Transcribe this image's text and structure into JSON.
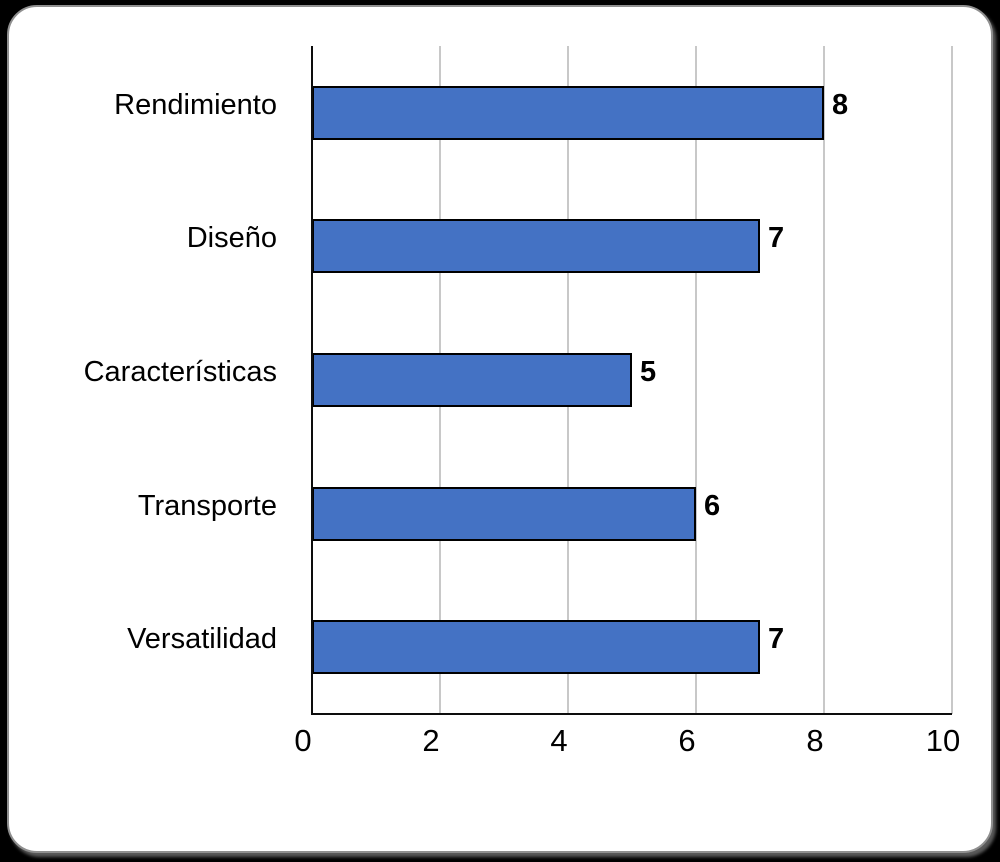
{
  "chart_data": {
    "type": "bar",
    "orientation": "horizontal",
    "title": "",
    "xlabel": "",
    "ylabel": "",
    "categories": [
      "Rendimiento",
      "Diseño",
      "Características",
      "Transporte",
      "Versatilidad"
    ],
    "values": [
      8,
      7,
      5,
      6,
      7
    ],
    "x_ticks": [
      "0",
      "2",
      "4",
      "6",
      "8",
      "10"
    ],
    "x_tick_values": [
      0,
      2,
      4,
      6,
      8,
      10
    ],
    "xlim": [
      0,
      10
    ],
    "grid": "vertical-gridlines-on",
    "legend": "none",
    "data_labels_shown": true,
    "colors": {
      "bar_fill": "#4472c4",
      "bar_border": "#000000",
      "gridline": "#c8c8c8",
      "axis_line": "#0d0d0d",
      "label_text": "#000000",
      "card_background": "#ffffff",
      "page_background": "#000000"
    }
  }
}
